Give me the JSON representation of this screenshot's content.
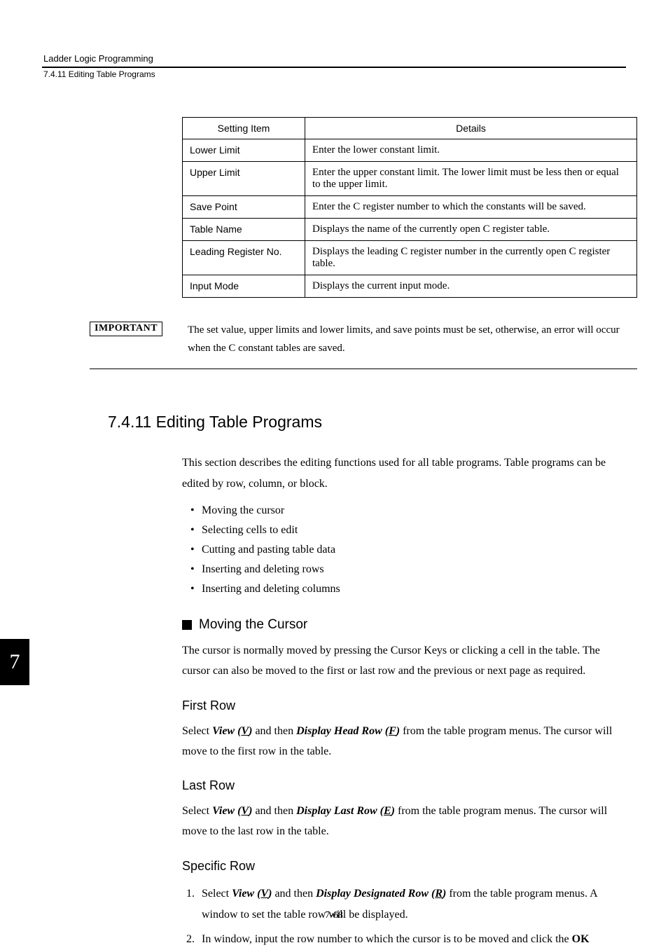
{
  "header": {
    "chapter": "Ladder Logic Programming",
    "section": "7.4.11  Editing Table Programs"
  },
  "table": {
    "col1_header": "Setting Item",
    "col2_header": "Details",
    "rows": [
      {
        "item": "Lower Limit",
        "detail": "Enter the lower constant limit."
      },
      {
        "item": "Upper Limit",
        "detail": "Enter the upper constant limit. The lower limit must be less then or equal to the upper limit."
      },
      {
        "item": "Save Point",
        "detail": "Enter the C register number to which the constants will be saved."
      },
      {
        "item": "Table Name",
        "detail": "Displays the name of the currently open C register table."
      },
      {
        "item": "Leading Register No.",
        "detail": "Displays the leading C register number in the currently open C register table."
      },
      {
        "item": "Input Mode",
        "detail": "Displays the current input mode."
      }
    ]
  },
  "important": {
    "badge": "IMPORTANT",
    "text_a": "The set value, upper limits and lower limits, and save points must be set, otherwise, an error will occur when the C ",
    "text_b": "constant",
    "text_c": " tables are saved."
  },
  "section_title": "7.4.11  Editing Table Programs",
  "intro": "This section describes the editing functions used for all table programs. Table programs can be edited by row, column, or block.",
  "bullets": [
    "Moving the cursor",
    "Selecting cells to edit",
    "Cutting and pasting table data",
    "Inserting and deleting rows",
    "Inserting and deleting columns"
  ],
  "sub_moving": "Moving the Cursor",
  "moving_para": "The cursor is normally moved by pressing the Cursor Keys or clicking a cell in the table. The cursor can also be moved to the first or last row and the previous or next page as required.",
  "first_row": {
    "head": "First Row",
    "pre": "Select ",
    "view": "View (",
    "v": "V",
    "close1": ")",
    "and": " and then ",
    "disp": "Display Head Row (",
    "f": "F",
    "close2": ")",
    "post": " from the table program menus. The cursor will move to the first row in the table."
  },
  "last_row": {
    "head": "Last Row",
    "pre": "Select ",
    "view": "View (",
    "v": "V",
    "close1": ")",
    "and": " and then ",
    "disp": "Display Last Row (",
    "e": "E",
    "close2": ")",
    "post": " from the table program menus. The cursor will move to the last row in the table."
  },
  "specific": {
    "head": "Specific Row",
    "step1_pre": "Select ",
    "view": "View (",
    "v": "V",
    "close1": ")",
    "and": " and then ",
    "disp": "Display Designated Row (",
    "r": "R",
    "close2": ")",
    "step1_post": " from the table program menus. A window to set the table row will be displayed.",
    "step2_a": "In window, input the row number to which the cursor is to be moved and click the ",
    "ok": "OK"
  },
  "tab": "7",
  "pagenum": "7-68"
}
